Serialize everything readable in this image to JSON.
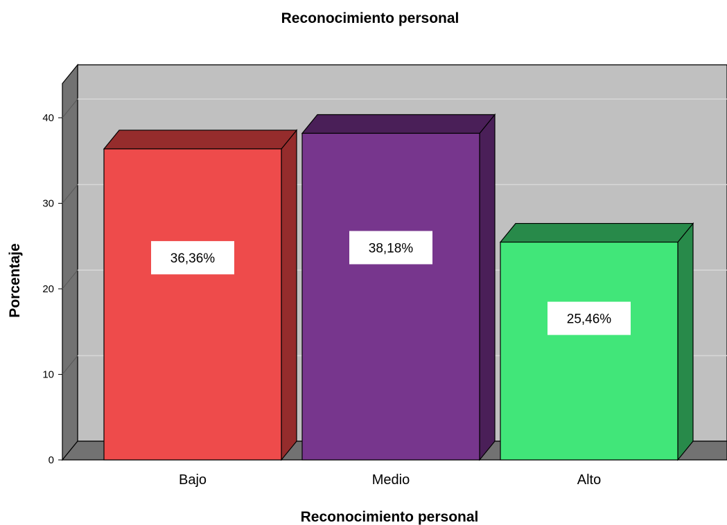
{
  "chart_data": {
    "type": "bar",
    "title": "Reconocimiento personal",
    "xlabel": "Reconocimiento personal",
    "ylabel": "Porcentaje",
    "categories": [
      "Bajo",
      "Medio",
      "Alto"
    ],
    "values": [
      36.36,
      38.18,
      25.46
    ],
    "data_labels": [
      "36,36%",
      "38,18%",
      "25,46%"
    ],
    "yticks": [
      "0",
      "10",
      "20",
      "30",
      "40"
    ],
    "ylim": [
      0,
      44
    ],
    "grid": true,
    "legend": "none",
    "style": "3d",
    "colors": {
      "front": [
        "#ee4b4b",
        "#77368d",
        "#41e679"
      ],
      "top": [
        "#952c2c",
        "#4a1f58",
        "#288a4a"
      ],
      "side": [
        "#952c2c",
        "#4a1f58",
        "#288a4a"
      ],
      "wall_back": "#c0c0c0",
      "wall_left": "#727272",
      "floor": "#727272",
      "gridline": "#d8d8d8"
    }
  }
}
